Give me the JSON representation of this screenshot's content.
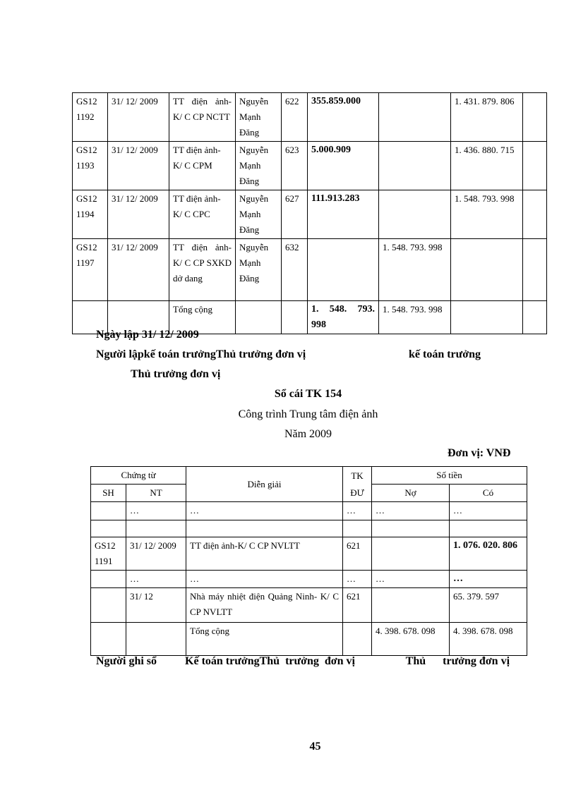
{
  "table1": {
    "rows": [
      {
        "sh": "GS12 1192",
        "nt": "31/ 12/ 2009",
        "desc": "TT điện ảnh- K/ C CP NCTT",
        "person": "Nguyễn Mạnh Đăng",
        "tk": "622",
        "no": "355.859.000",
        "co": "",
        "balance": "1. 431. 879. 806"
      },
      {
        "sh": "GS12 1193",
        "nt": "31/ 12/ 2009",
        "desc": "TT điện ảnh- K/ C CPM",
        "person": "Nguyễn Mạnh Đăng",
        "tk": "623",
        "no": "5.000.909",
        "co": "",
        "balance": "1. 436. 880. 715"
      },
      {
        "sh": "GS12 1194",
        "nt": "31/ 12/ 2009",
        "desc": "TT điện ảnh- K/ C CPC",
        "person": "Nguyễn Mạnh Đăng",
        "tk": "627",
        "no": "111.913.283",
        "co": "",
        "balance": "1. 548. 793. 998"
      },
      {
        "sh": "GS12 1197",
        "nt": "31/ 12/ 2009",
        "desc": "TT điện ảnh- K/ C CP SXKD dở dang",
        "person": "Nguyễn Mạnh Đăng",
        "tk": "632",
        "no": "",
        "co": "1. 548. 793. 998",
        "balance": ""
      },
      {
        "sh": "",
        "nt": "",
        "desc": "Tổng cộng",
        "person": "",
        "tk": "",
        "no": "1. 548. 793. 998",
        "co": "1. 548. 793. 998",
        "balance": ""
      }
    ]
  },
  "sign1": {
    "date": "Ngày lập 31/ 12/ 2009",
    "line1": "Người lậpkế toán trưởngThủ trưởng đơn vị",
    "line1b": "kế toán trưởng",
    "line2": "Thủ trưởng đơn vị"
  },
  "title": "Sổ cái TK 154",
  "subtitle": "Công trình Trung tâm điện ảnh",
  "year": "Năm 2009",
  "unit": "Đơn vị:  VNĐ",
  "table2": {
    "headers": {
      "chungtu": "Chứng từ",
      "sh": "SH",
      "nt": "NT",
      "diengiai": "Diễn  giải",
      "tkdu": "TK ĐƯ",
      "sotien": "Số tiền",
      "no": "Nợ",
      "co": "Có"
    },
    "rows": [
      {
        "sh": "",
        "nt": "…",
        "desc": "…",
        "tk": "…",
        "no": "…",
        "co": "…"
      },
      {
        "sh": "",
        "nt": "",
        "desc": "",
        "tk": "",
        "no": "",
        "co": ""
      },
      {
        "sh": "GS12 1191",
        "nt": "31/ 12/ 2009",
        "desc": "TT điện ảnh-K/ C CP NVLTT",
        "tk": "621",
        "no": "",
        "co": "1. 076. 020. 806"
      },
      {
        "sh": "",
        "nt": "…",
        "desc": "…",
        "tk": "…",
        "no": "…",
        "co": "…"
      },
      {
        "sh": "",
        "nt": "31/ 12",
        "desc": "Nhà máy nhiệt điện Quảng Ninh-  K/ C CP NVLTT",
        "tk": "621",
        "no": "",
        "co": "65. 379. 597"
      },
      {
        "sh": "",
        "nt": "",
        "desc": "Tổng cộng",
        "tk": "",
        "no": "4. 398. 678. 098",
        "co": "4. 398. 678. 098"
      }
    ]
  },
  "sign2": {
    "text": "Người ghi sổ          Kế toán trưởngThủ  trưởng  đơn vị                  Thủ      trưởng đơn vị"
  },
  "page_number": "45"
}
